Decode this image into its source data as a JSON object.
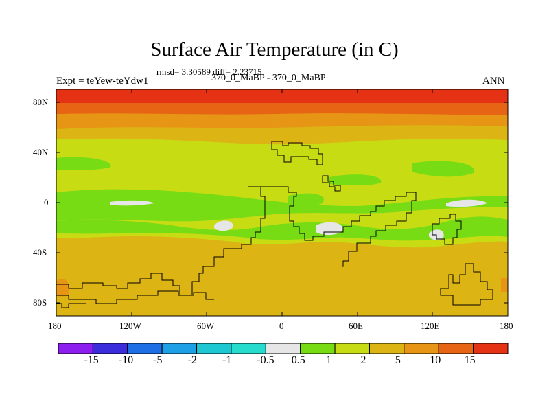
{
  "title": "Surface Air Temperature (in C)",
  "stats": "rmsd= 3.30589 diff= 2.23715",
  "left_label": "Expt = teYew-teYdw1",
  "center_label": "370_0_MaBP - 370_0_MaBP",
  "right_label": "ANN",
  "y_ticks": [
    "80N",
    "40N",
    "0",
    "40S",
    "80S"
  ],
  "x_ticks": [
    "180",
    "120W",
    "60W",
    "0",
    "60E",
    "120E",
    "180"
  ],
  "colorbar": {
    "colors": [
      "#8c1ef0",
      "#3c2ddc",
      "#1e6ee6",
      "#1ea0e6",
      "#1ec8d2",
      "#28dccd",
      "#e6e6e6",
      "#78dc14",
      "#c8dc14",
      "#dcb414",
      "#e69614",
      "#e66414",
      "#e63214"
    ],
    "labels": [
      "-15",
      "-10",
      "-5",
      "-2",
      "-1",
      "-0.5",
      "0.5",
      "1",
      "2",
      "5",
      "10",
      "15"
    ]
  },
  "colors": {
    "red": "#e63214",
    "orange_red": "#e66414",
    "orange": "#e69614",
    "gold": "#dcb414",
    "yellow_green": "#c8dc14",
    "green": "#78dc14",
    "near_zero": "#e6e6e6"
  }
}
